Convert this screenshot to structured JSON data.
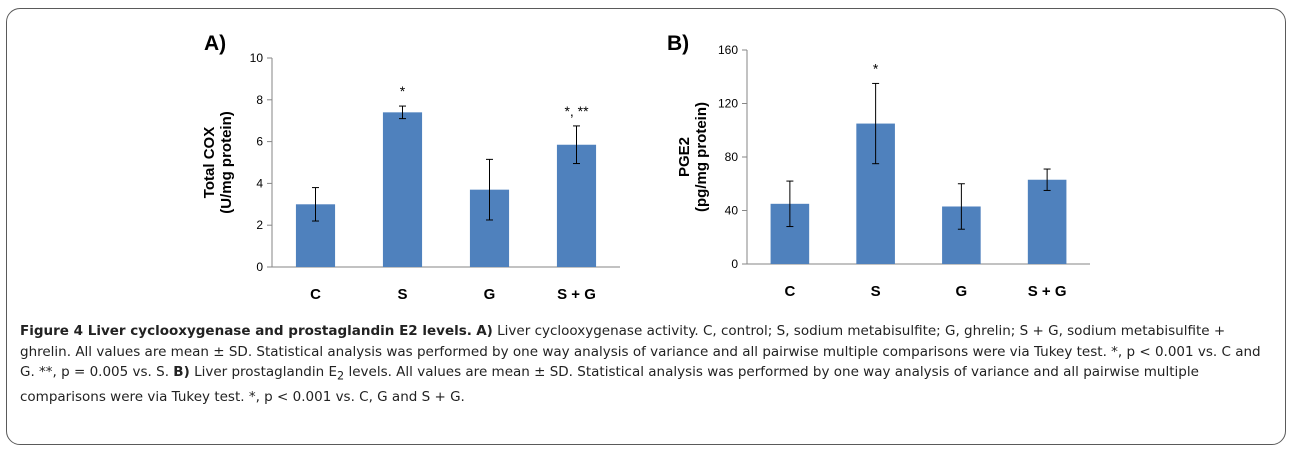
{
  "chart_data": [
    {
      "type": "bar",
      "panel_label": "A)",
      "categories": [
        "C",
        "S",
        "G",
        "S + G"
      ],
      "values": [
        3.0,
        7.4,
        3.7,
        5.85
      ],
      "error_bars": [
        0.8,
        0.3,
        1.45,
        0.9
      ],
      "significance": [
        "",
        "*",
        "",
        "*, **"
      ],
      "ylabel_lines": [
        "Total COX",
        "(U/mg protein)"
      ],
      "ylim": [
        0,
        10
      ],
      "yticks": [
        0,
        2,
        4,
        6,
        8,
        10
      ],
      "bar_color": "#4f81bd",
      "grid": false
    },
    {
      "type": "bar",
      "panel_label": "B)",
      "categories": [
        "C",
        "S",
        "G",
        "S + G"
      ],
      "values": [
        45,
        105,
        43,
        63
      ],
      "error_bars": [
        17,
        30,
        17,
        8
      ],
      "significance": [
        "",
        "*",
        "",
        ""
      ],
      "ylabel_lines": [
        "PGE2",
        "(pg/mg protein)"
      ],
      "ylim": [
        0,
        160
      ],
      "yticks": [
        0,
        40,
        80,
        120,
        160
      ],
      "bar_color": "#4f81bd",
      "grid": false
    }
  ],
  "caption": {
    "title": "Figure 4 Liver cyclooxygenase and prostaglandin E2 levels.",
    "a_label": "A)",
    "a_text": "Liver cyclooxygenase activity. C, control; S, sodium metabisulfite; G, ghrelin; S + G, sodium metabisulfite + ghrelin. All values are mean ± SD. Statistical analysis was performed by one way analysis of variance and all pairwise multiple comparisons were via Tukey test. *, p < 0.001 vs. C and G. **, p = 0.005 vs. S.",
    "b_label": "B)",
    "b_text_pre": "Liver prostaglandin E",
    "b_sub": "2",
    "b_text_post": "levels. All values are mean ± SD. Statistical analysis was performed by one way analysis of variance and all pairwise multiple comparisons were via Tukey test. *, p < 0.001 vs. C, G and S + G."
  }
}
